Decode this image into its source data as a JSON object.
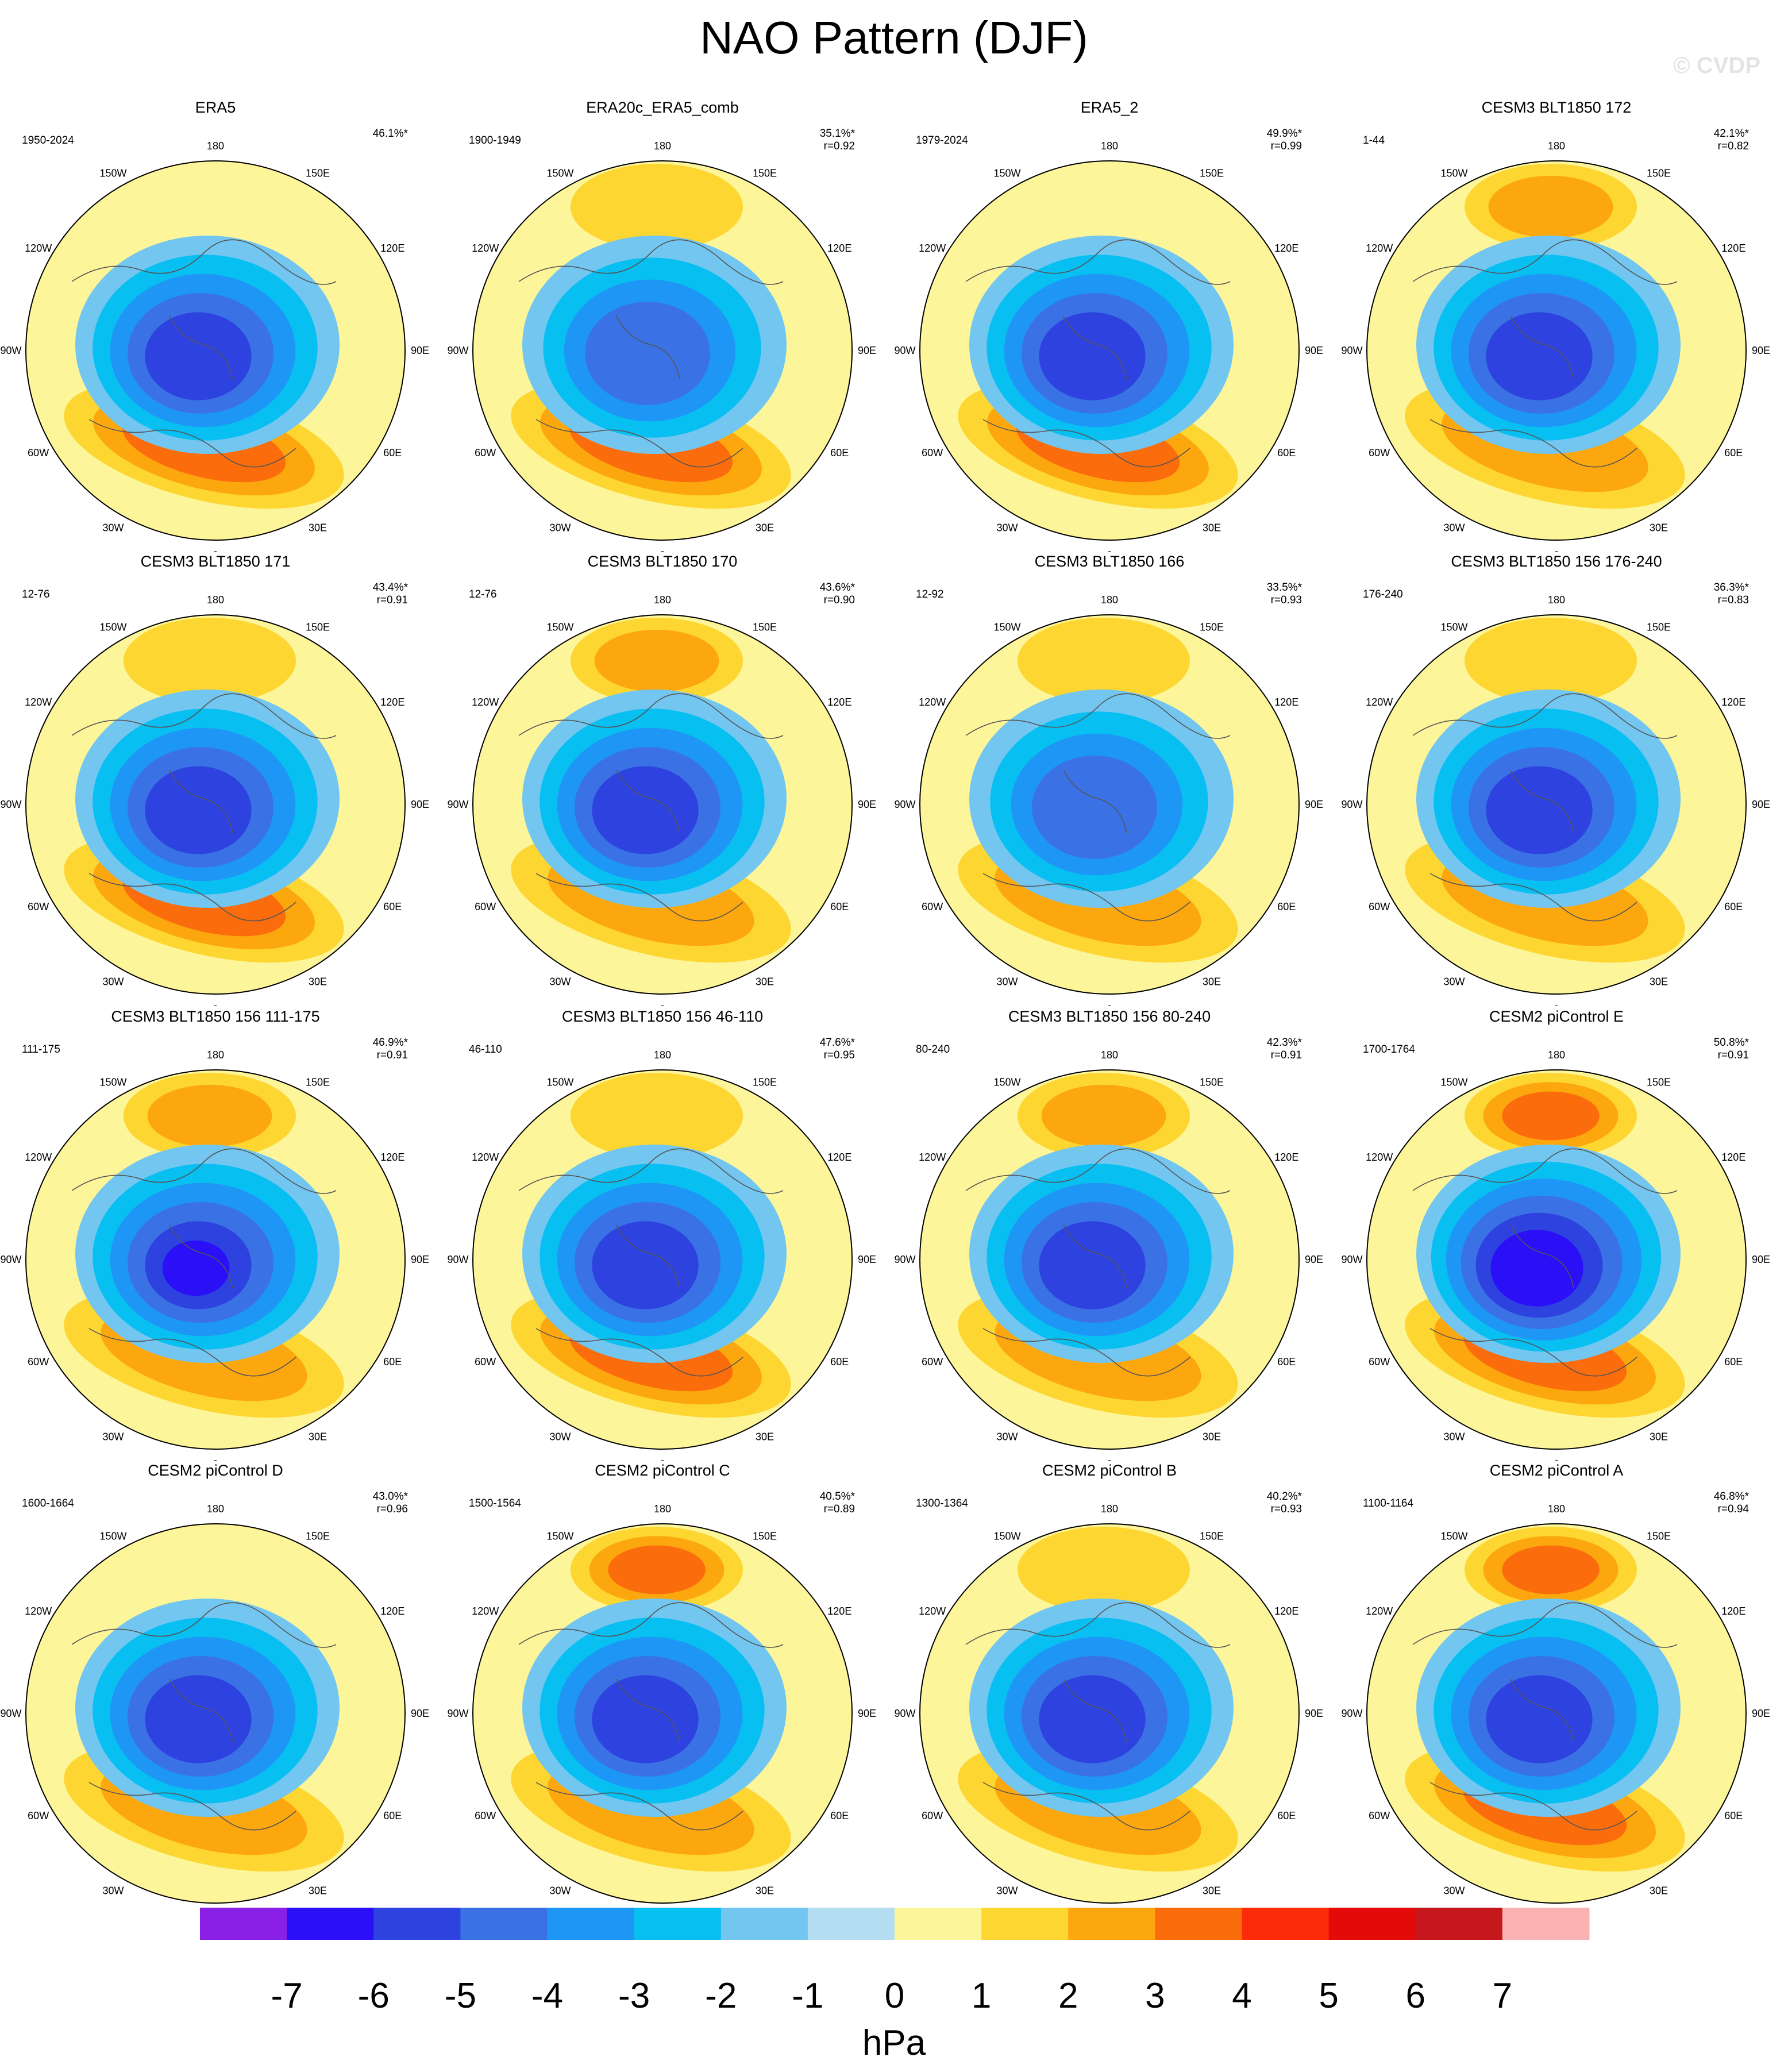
{
  "title": "NAO Pattern (DJF)",
  "watermark": "© CVDP",
  "lon_labels": [
    "180",
    "150E",
    "120E",
    "90E",
    "60E",
    "30E",
    "0",
    "30W",
    "60W",
    "90W",
    "120W",
    "150W"
  ],
  "panels": [
    {
      "title": "ERA5",
      "years": "1950-2024",
      "pct": "46.1%*",
      "r": "",
      "high_pac": 0,
      "high_atl": 3.2,
      "low_amp": 5.2
    },
    {
      "title": "ERA20c_ERA5_comb",
      "years": "1900-1949",
      "pct": "35.1%*",
      "r": "r=0.92",
      "high_pac": 1.4,
      "high_atl": 3.1,
      "low_amp": 4.2
    },
    {
      "title": "ERA5_2",
      "years": "1979-2024",
      "pct": "49.9%*",
      "r": "r=0.99",
      "high_pac": 0,
      "high_atl": 3.1,
      "low_amp": 5.3
    },
    {
      "title": "CESM3 BLT1850 172",
      "years": "1-44",
      "pct": "42.1%*",
      "r": "r=0.82",
      "high_pac": 2.1,
      "high_atl": 2.1,
      "low_amp": 5.2
    },
    {
      "title": "CESM3 BLT1850 171",
      "years": "12-76",
      "pct": "43.4%*",
      "r": "r=0.91",
      "high_pac": 1.8,
      "high_atl": 3.1,
      "low_amp": 5.3
    },
    {
      "title": "CESM3 BLT1850 170",
      "years": "12-76",
      "pct": "43.6%*",
      "r": "r=0.90",
      "high_pac": 2.5,
      "high_atl": 2.6,
      "low_amp": 5.2
    },
    {
      "title": "CESM3 BLT1850 166",
      "years": "12-92",
      "pct": "33.5%*",
      "r": "r=0.93",
      "high_pac": 1.2,
      "high_atl": 2.4,
      "low_amp": 4.6
    },
    {
      "title": "CESM3 BLT1850 156 176-240",
      "years": "176-240",
      "pct": "36.3%*",
      "r": "r=0.83",
      "high_pac": 1.4,
      "high_atl": 2.1,
      "low_amp": 5.2
    },
    {
      "title": "CESM3 BLT1850 156 111-175",
      "years": "111-175",
      "pct": "46.9%*",
      "r": "r=0.91",
      "high_pac": 2.4,
      "high_atl": 2.6,
      "low_amp": 6.0
    },
    {
      "title": "CESM3 BLT1850 156 46-110",
      "years": "46-110",
      "pct": "47.6%*",
      "r": "r=0.95",
      "high_pac": 1.5,
      "high_atl": 3.1,
      "low_amp": 5.2
    },
    {
      "title": "CESM3 BLT1850 156 80-240",
      "years": "80-240",
      "pct": "42.3%*",
      "r": "r=0.91",
      "high_pac": 2.2,
      "high_atl": 2.6,
      "low_amp": 5.2
    },
    {
      "title": "CESM2 piControl E",
      "years": "1700-1764",
      "pct": "50.8%*",
      "r": "r=0.91",
      "high_pac": 3.4,
      "high_atl": 3.1,
      "low_amp": 6.2
    },
    {
      "title": "CESM2 piControl D",
      "years": "1600-1664",
      "pct": "43.0%*",
      "r": "r=0.96",
      "high_pac": 0,
      "high_atl": 2.6,
      "low_amp": 5.3
    },
    {
      "title": "CESM2 piControl C",
      "years": "1500-1564",
      "pct": "40.5%*",
      "r": "r=0.89",
      "high_pac": 3.5,
      "high_atl": 2.6,
      "low_amp": 5.2
    },
    {
      "title": "CESM2 piControl B",
      "years": "1300-1364",
      "pct": "40.2%*",
      "r": "r=0.93",
      "high_pac": 1.3,
      "high_atl": 2.6,
      "low_amp": 5.3
    },
    {
      "title": "CESM2 piControl A",
      "years": "1100-1164",
      "pct": "46.8%*",
      "r": "r=0.94",
      "high_pac": 3.6,
      "high_atl": 3.1,
      "low_amp": 5.3
    }
  ],
  "colorbar": {
    "labels": [
      "-7",
      "-6",
      "-5",
      "-4",
      "-3",
      "-2",
      "-1",
      "0",
      "1",
      "2",
      "3",
      "4",
      "5",
      "6",
      "7"
    ],
    "colors": [
      "#8a1fe6",
      "#2a0ff7",
      "#2e42e0",
      "#3a72e6",
      "#1e96f5",
      "#08bff2",
      "#73c6f0",
      "#b4ddf2",
      "#fdf59a",
      "#fdd631",
      "#fca70e",
      "#fb6c0c",
      "#fb2c07",
      "#e30a0a",
      "#c6181c",
      "#fbb2b2"
    ],
    "unit": "hPa"
  }
}
